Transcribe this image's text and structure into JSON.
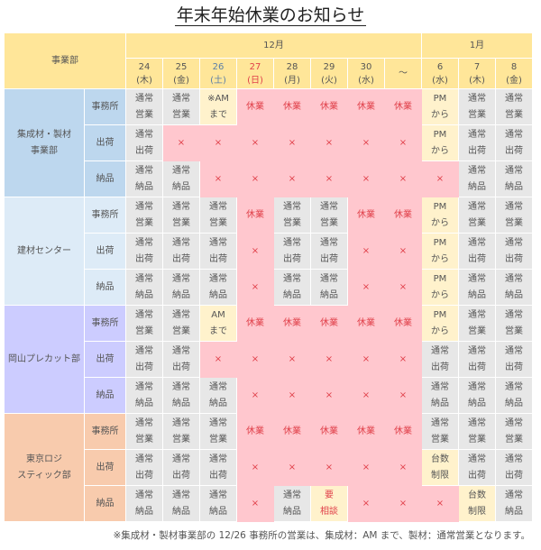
{
  "title": "年末年始休業のお知らせ",
  "header": {
    "dept_label": "事業部",
    "months": [
      {
        "label": "12月",
        "span": 8
      },
      {
        "label": "1月",
        "span": 3
      }
    ],
    "days": [
      {
        "d": "24",
        "w": "(木)",
        "color": "#555555"
      },
      {
        "d": "25",
        "w": "(金)",
        "color": "#555555"
      },
      {
        "d": "26",
        "w": "(土)",
        "color": "#5b7fa8"
      },
      {
        "d": "27",
        "w": "(日)",
        "color": "#e0404a"
      },
      {
        "d": "28",
        "w": "(月)",
        "color": "#555555"
      },
      {
        "d": "29",
        "w": "(火)",
        "color": "#555555"
      },
      {
        "d": "30",
        "w": "(水)",
        "color": "#555555"
      },
      {
        "d": "～",
        "w": "",
        "color": "#555555"
      },
      {
        "d": "6",
        "w": "(水)",
        "color": "#555555"
      },
      {
        "d": "7",
        "w": "(木)",
        "color": "#555555"
      },
      {
        "d": "8",
        "w": "(金)",
        "color": "#555555"
      }
    ]
  },
  "colors": {
    "gray": "#e7e7e7",
    "pink": "#ffc7ce",
    "yellow": "#fff2cc",
    "header": "#ffe699"
  },
  "departments": [
    {
      "name": "集成材・製材\n事業部",
      "color": "#bdd7ee",
      "rows": [
        {
          "label": "事務所",
          "cells": [
            {
              "t": "通常\n営業",
              "c": "g"
            },
            {
              "t": "通常\n営業",
              "c": "g"
            },
            {
              "t": "※AM\nまで",
              "c": "y"
            },
            {
              "t": "休業",
              "c": "r"
            },
            {
              "t": "休業",
              "c": "r"
            },
            {
              "t": "休業",
              "c": "r"
            },
            {
              "t": "休業",
              "c": "r"
            },
            {
              "t": "休業",
              "c": "r"
            },
            {
              "t": "PM\nから",
              "c": "y"
            },
            {
              "t": "通常\n営業",
              "c": "g"
            },
            {
              "t": "通常\n営業",
              "c": "g"
            }
          ]
        },
        {
          "label": "出荷",
          "cells": [
            {
              "t": "通常\n出荷",
              "c": "g"
            },
            {
              "t": "×",
              "c": "r"
            },
            {
              "t": "×",
              "c": "r"
            },
            {
              "t": "×",
              "c": "r"
            },
            {
              "t": "×",
              "c": "r"
            },
            {
              "t": "×",
              "c": "r"
            },
            {
              "t": "×",
              "c": "r"
            },
            {
              "t": "×",
              "c": "r"
            },
            {
              "t": "PM\nから",
              "c": "y"
            },
            {
              "t": "通常\n出荷",
              "c": "g"
            },
            {
              "t": "通常\n出荷",
              "c": "g"
            }
          ]
        },
        {
          "label": "納品",
          "cells": [
            {
              "t": "通常\n納品",
              "c": "g"
            },
            {
              "t": "通常\n納品",
              "c": "g"
            },
            {
              "t": "×",
              "c": "r"
            },
            {
              "t": "×",
              "c": "r"
            },
            {
              "t": "×",
              "c": "r"
            },
            {
              "t": "×",
              "c": "r"
            },
            {
              "t": "×",
              "c": "r"
            },
            {
              "t": "×",
              "c": "r"
            },
            {
              "t": "×",
              "c": "r"
            },
            {
              "t": "通常\n納品",
              "c": "g"
            },
            {
              "t": "通常\n納品",
              "c": "g"
            }
          ]
        }
      ]
    },
    {
      "name": "建材センター",
      "color": "#ddebf7",
      "rows": [
        {
          "label": "事務所",
          "cells": [
            {
              "t": "通常\n営業",
              "c": "g"
            },
            {
              "t": "通常\n営業",
              "c": "g"
            },
            {
              "t": "通常\n営業",
              "c": "g"
            },
            {
              "t": "休業",
              "c": "r"
            },
            {
              "t": "通常\n営業",
              "c": "g"
            },
            {
              "t": "通常\n営業",
              "c": "g"
            },
            {
              "t": "休業",
              "c": "r"
            },
            {
              "t": "休業",
              "c": "r"
            },
            {
              "t": "PM\nから",
              "c": "y"
            },
            {
              "t": "通常\n営業",
              "c": "g"
            },
            {
              "t": "通常\n営業",
              "c": "g"
            }
          ]
        },
        {
          "label": "出荷",
          "cells": [
            {
              "t": "通常\n出荷",
              "c": "g"
            },
            {
              "t": "通常\n出荷",
              "c": "g"
            },
            {
              "t": "通常\n出荷",
              "c": "g"
            },
            {
              "t": "×",
              "c": "r"
            },
            {
              "t": "通常\n出荷",
              "c": "g"
            },
            {
              "t": "通常\n出荷",
              "c": "g"
            },
            {
              "t": "×",
              "c": "r"
            },
            {
              "t": "×",
              "c": "r"
            },
            {
              "t": "PM\nから",
              "c": "y"
            },
            {
              "t": "通常\n出荷",
              "c": "g"
            },
            {
              "t": "通常\n出荷",
              "c": "g"
            }
          ]
        },
        {
          "label": "納品",
          "cells": [
            {
              "t": "通常\n納品",
              "c": "g"
            },
            {
              "t": "通常\n納品",
              "c": "g"
            },
            {
              "t": "通常\n納品",
              "c": "g"
            },
            {
              "t": "×",
              "c": "r"
            },
            {
              "t": "通常\n納品",
              "c": "g"
            },
            {
              "t": "通常\n納品",
              "c": "g"
            },
            {
              "t": "×",
              "c": "r"
            },
            {
              "t": "×",
              "c": "r"
            },
            {
              "t": "PM\nから",
              "c": "y"
            },
            {
              "t": "通常\n納品",
              "c": "g"
            },
            {
              "t": "通常\n納品",
              "c": "g"
            }
          ]
        }
      ]
    },
    {
      "name": "岡山プレカット部",
      "color": "#ccccff",
      "rows": [
        {
          "label": "事務所",
          "cells": [
            {
              "t": "通常\n営業",
              "c": "g"
            },
            {
              "t": "通常\n営業",
              "c": "g"
            },
            {
              "t": "AM\nまで",
              "c": "y"
            },
            {
              "t": "休業",
              "c": "r"
            },
            {
              "t": "休業",
              "c": "r"
            },
            {
              "t": "休業",
              "c": "r"
            },
            {
              "t": "休業",
              "c": "r"
            },
            {
              "t": "休業",
              "c": "r"
            },
            {
              "t": "PM\nから",
              "c": "y"
            },
            {
              "t": "通常\n営業",
              "c": "g"
            },
            {
              "t": "通常\n営業",
              "c": "g"
            }
          ]
        },
        {
          "label": "出荷",
          "cells": [
            {
              "t": "通常\n出荷",
              "c": "g"
            },
            {
              "t": "通常\n出荷",
              "c": "g"
            },
            {
              "t": "×",
              "c": "r"
            },
            {
              "t": "×",
              "c": "r"
            },
            {
              "t": "×",
              "c": "r"
            },
            {
              "t": "×",
              "c": "r"
            },
            {
              "t": "×",
              "c": "r"
            },
            {
              "t": "×",
              "c": "r"
            },
            {
              "t": "通常\n出荷",
              "c": "g"
            },
            {
              "t": "通常\n出荷",
              "c": "g"
            },
            {
              "t": "通常\n出荷",
              "c": "g"
            }
          ]
        },
        {
          "label": "納品",
          "cells": [
            {
              "t": "通常\n納品",
              "c": "g"
            },
            {
              "t": "通常\n納品",
              "c": "g"
            },
            {
              "t": "通常\n納品",
              "c": "g"
            },
            {
              "t": "×",
              "c": "r"
            },
            {
              "t": "×",
              "c": "r"
            },
            {
              "t": "×",
              "c": "r"
            },
            {
              "t": "×",
              "c": "r"
            },
            {
              "t": "×",
              "c": "r"
            },
            {
              "t": "通常\n納品",
              "c": "g"
            },
            {
              "t": "通常\n納品",
              "c": "g"
            },
            {
              "t": "通常\n納品",
              "c": "g"
            }
          ]
        }
      ]
    },
    {
      "name": "東京ロジ\nスティック部",
      "color": "#f8cbad",
      "rows": [
        {
          "label": "事務所",
          "cells": [
            {
              "t": "通常\n営業",
              "c": "g"
            },
            {
              "t": "通常\n営業",
              "c": "g"
            },
            {
              "t": "通常\n営業",
              "c": "g"
            },
            {
              "t": "休業",
              "c": "r"
            },
            {
              "t": "休業",
              "c": "r"
            },
            {
              "t": "休業",
              "c": "r"
            },
            {
              "t": "休業",
              "c": "r"
            },
            {
              "t": "休業",
              "c": "r"
            },
            {
              "t": "通常\n営業",
              "c": "g"
            },
            {
              "t": "通常\n営業",
              "c": "g"
            },
            {
              "t": "通常\n営業",
              "c": "g"
            }
          ]
        },
        {
          "label": "出荷",
          "cells": [
            {
              "t": "通常\n出荷",
              "c": "g"
            },
            {
              "t": "通常\n出荷",
              "c": "g"
            },
            {
              "t": "通常\n出荷",
              "c": "g"
            },
            {
              "t": "×",
              "c": "r"
            },
            {
              "t": "×",
              "c": "r"
            },
            {
              "t": "×",
              "c": "r"
            },
            {
              "t": "×",
              "c": "r"
            },
            {
              "t": "×",
              "c": "r"
            },
            {
              "t": "台数\n制限",
              "c": "y"
            },
            {
              "t": "通常\n出荷",
              "c": "g"
            },
            {
              "t": "通常\n出荷",
              "c": "g"
            }
          ]
        },
        {
          "label": "納品",
          "cells": [
            {
              "t": "通常\n納品",
              "c": "g"
            },
            {
              "t": "通常\n納品",
              "c": "g"
            },
            {
              "t": "通常\n納品",
              "c": "g"
            },
            {
              "t": "×",
              "c": "r"
            },
            {
              "t": "通常\n納品",
              "c": "g"
            },
            {
              "t": "要\n相談",
              "c": "y red"
            },
            {
              "t": "×",
              "c": "r"
            },
            {
              "t": "×",
              "c": "r"
            },
            {
              "t": "×",
              "c": "r"
            },
            {
              "t": "台数\n制限",
              "c": "y"
            },
            {
              "t": "通常\n納品",
              "c": "g"
            }
          ]
        }
      ]
    }
  ],
  "footnote": "※集成材・製材事業部の 12/26 事務所の営業は、集成材：AM まで、製材：通常営業となります。"
}
